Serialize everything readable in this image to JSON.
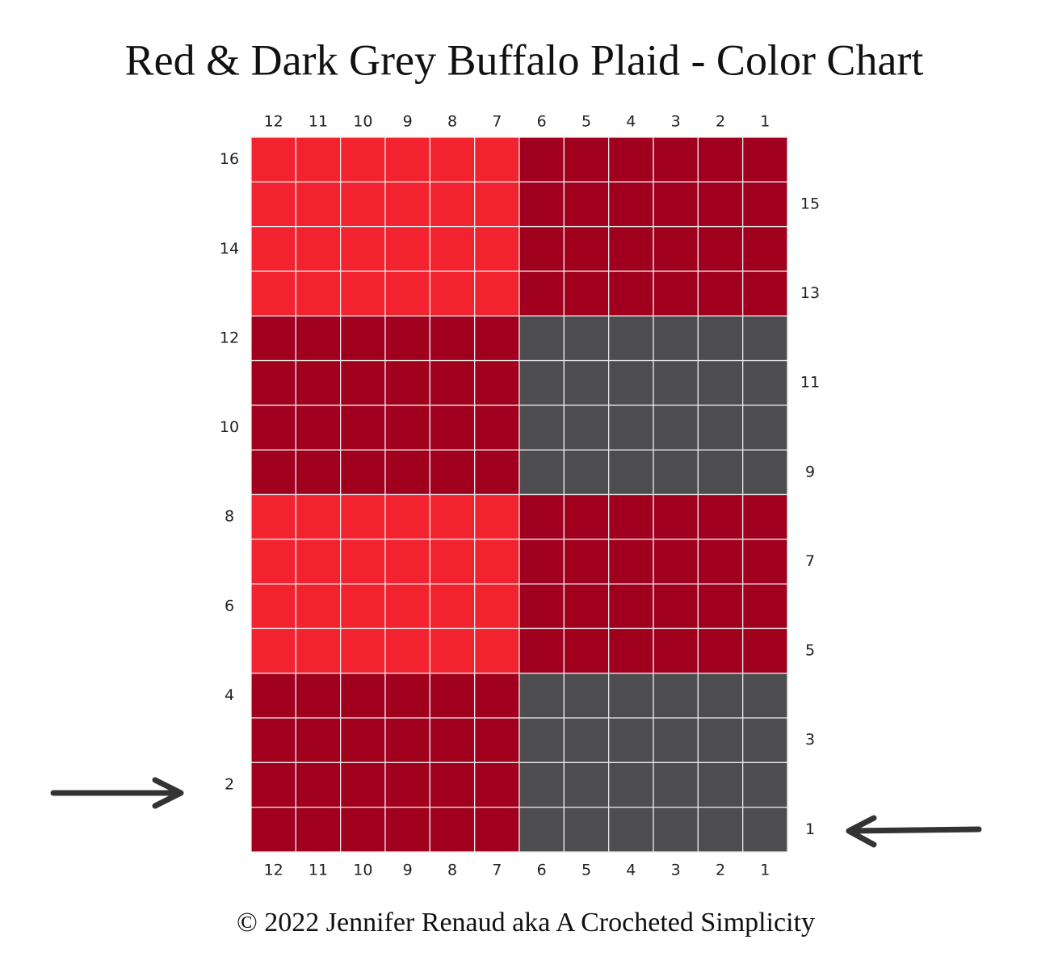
{
  "title": "Red & Dark Grey Buffalo Plaid - Color Chart",
  "column_labels": [
    "12",
    "11",
    "10",
    "9",
    "8",
    "7",
    "6",
    "5",
    "4",
    "3",
    "2",
    "1"
  ],
  "left_row_labels": [
    "16",
    "14",
    "12",
    "10",
    "8",
    "6",
    "4",
    "2"
  ],
  "right_row_labels": [
    "15",
    "13",
    "11",
    "9",
    "7",
    "5",
    "3",
    "1"
  ],
  "rows": [
    [
      "#f2222e",
      "#f2222e",
      "#f2222e",
      "#f2222e",
      "#f2222e",
      "#f2222e",
      "#a0001e",
      "#a0001e",
      "#a0001e",
      "#a0001e",
      "#a0001e",
      "#a0001e"
    ],
    [
      "#f2222e",
      "#f2222e",
      "#f2222e",
      "#f2222e",
      "#f2222e",
      "#f2222e",
      "#a0001e",
      "#a0001e",
      "#a0001e",
      "#a0001e",
      "#a0001e",
      "#a0001e"
    ],
    [
      "#f2222e",
      "#f2222e",
      "#f2222e",
      "#f2222e",
      "#f2222e",
      "#f2222e",
      "#a0001e",
      "#a0001e",
      "#a0001e",
      "#a0001e",
      "#a0001e",
      "#a0001e"
    ],
    [
      "#f2222e",
      "#f2222e",
      "#f2222e",
      "#f2222e",
      "#f2222e",
      "#f2222e",
      "#a0001e",
      "#a0001e",
      "#a0001e",
      "#a0001e",
      "#a0001e",
      "#a0001e"
    ],
    [
      "#a0001e",
      "#a0001e",
      "#a0001e",
      "#a0001e",
      "#a0001e",
      "#a0001e",
      "#4d4c4e",
      "#4d4c4e",
      "#4d4c4e",
      "#4d4c4e",
      "#4d4c4e",
      "#4d4c4e"
    ],
    [
      "#a0001e",
      "#a0001e",
      "#a0001e",
      "#a0001e",
      "#a0001e",
      "#a0001e",
      "#4d4c4e",
      "#4d4c4e",
      "#4d4c4e",
      "#4d4c4e",
      "#4d4c4e",
      "#4d4c4e"
    ],
    [
      "#a0001e",
      "#a0001e",
      "#a0001e",
      "#a0001e",
      "#a0001e",
      "#a0001e",
      "#4d4c4e",
      "#4d4c4e",
      "#4d4c4e",
      "#4d4c4e",
      "#4d4c4e",
      "#4d4c4e"
    ],
    [
      "#a0001e",
      "#a0001e",
      "#a0001e",
      "#a0001e",
      "#a0001e",
      "#a0001e",
      "#4d4c4e",
      "#4d4c4e",
      "#4d4c4e",
      "#4d4c4e",
      "#4d4c4e",
      "#4d4c4e"
    ],
    [
      "#f2222e",
      "#f2222e",
      "#f2222e",
      "#f2222e",
      "#f2222e",
      "#f2222e",
      "#a0001e",
      "#a0001e",
      "#a0001e",
      "#a0001e",
      "#a0001e",
      "#a0001e"
    ],
    [
      "#f2222e",
      "#f2222e",
      "#f2222e",
      "#f2222e",
      "#f2222e",
      "#f2222e",
      "#a0001e",
      "#a0001e",
      "#a0001e",
      "#a0001e",
      "#a0001e",
      "#a0001e"
    ],
    [
      "#f2222e",
      "#f2222e",
      "#f2222e",
      "#f2222e",
      "#f2222e",
      "#f2222e",
      "#a0001e",
      "#a0001e",
      "#a0001e",
      "#a0001e",
      "#a0001e",
      "#a0001e"
    ],
    [
      "#f2222e",
      "#f2222e",
      "#f2222e",
      "#f2222e",
      "#f2222e",
      "#f2222e",
      "#a0001e",
      "#a0001e",
      "#a0001e",
      "#a0001e",
      "#a0001e",
      "#a0001e"
    ],
    [
      "#a0001e",
      "#a0001e",
      "#a0001e",
      "#a0001e",
      "#a0001e",
      "#a0001e",
      "#4d4c4e",
      "#4d4c4e",
      "#4d4c4e",
      "#4d4c4e",
      "#4d4c4e",
      "#4d4c4e"
    ],
    [
      "#a0001e",
      "#a0001e",
      "#a0001e",
      "#a0001e",
      "#a0001e",
      "#a0001e",
      "#4d4c4e",
      "#4d4c4e",
      "#4d4c4e",
      "#4d4c4e",
      "#4d4c4e",
      "#4d4c4e"
    ],
    [
      "#a0001e",
      "#a0001e",
      "#a0001e",
      "#a0001e",
      "#a0001e",
      "#a0001e",
      "#4d4c4e",
      "#4d4c4e",
      "#4d4c4e",
      "#4d4c4e",
      "#4d4c4e",
      "#4d4c4e"
    ],
    [
      "#a0001e",
      "#a0001e",
      "#a0001e",
      "#a0001e",
      "#a0001e",
      "#a0001e",
      "#4d4c4e",
      "#4d4c4e",
      "#4d4c4e",
      "#4d4c4e",
      "#4d4c4e",
      "#4d4c4e"
    ]
  ],
  "footer": "© 2022 Jennifer Renaud aka A Crocheted Simplicity"
}
